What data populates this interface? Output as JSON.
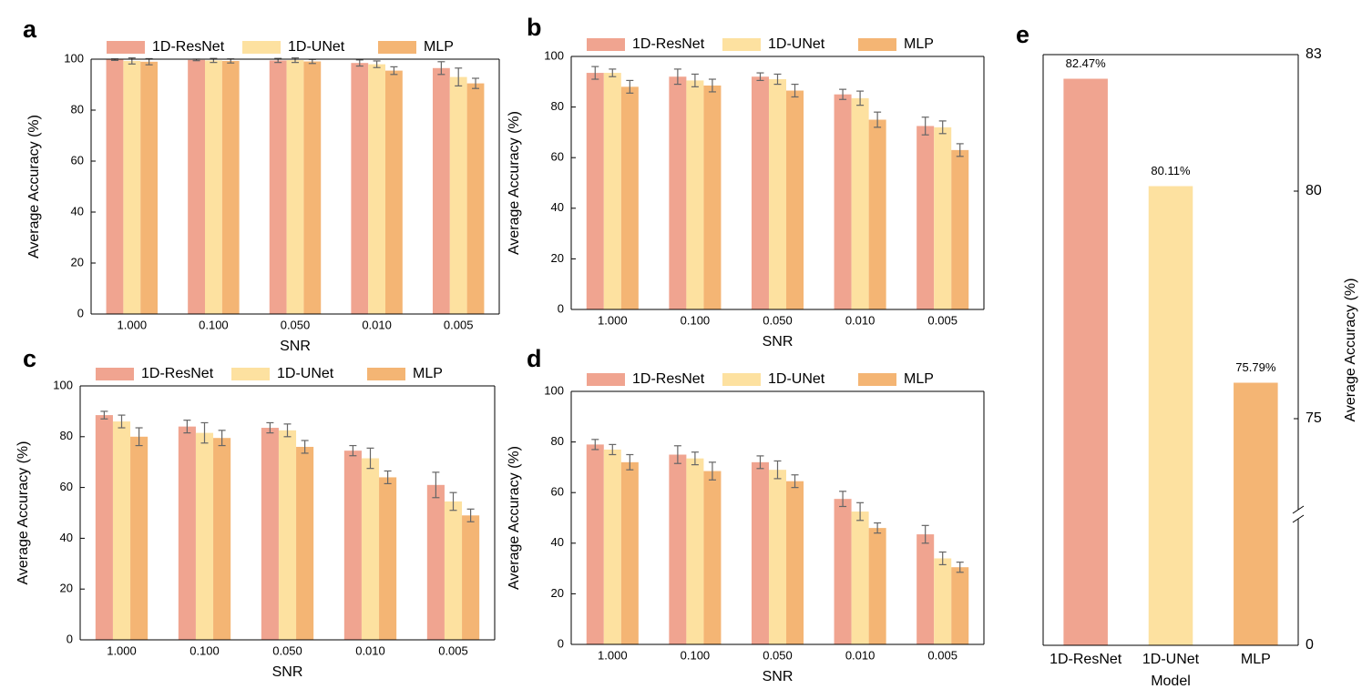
{
  "chart_data": [
    {
      "type": "bar",
      "label": "a",
      "xlabel": "SNR",
      "ylabel": "Average Accuracy (%)",
      "categories": [
        "1.000",
        "0.100",
        "0.050",
        "0.010",
        "0.005"
      ],
      "series": [
        {
          "name": "1D-ResNet",
          "color": "#f0a490",
          "values": [
            99.8,
            99.7,
            99.5,
            98.5,
            96.5
          ],
          "errors": [
            0.3,
            0.3,
            0.8,
            1.2,
            2.5
          ]
        },
        {
          "name": "1D-UNet",
          "color": "#fde1a0",
          "values": [
            99.3,
            99.5,
            99.6,
            98.0,
            93.0
          ],
          "errors": [
            1.2,
            0.8,
            0.9,
            1.3,
            3.5
          ]
        },
        {
          "name": "MLP",
          "color": "#f4b574",
          "values": [
            99.0,
            99.3,
            99.1,
            95.5,
            90.5
          ],
          "errors": [
            1.2,
            0.8,
            0.8,
            1.5,
            2.0
          ]
        }
      ],
      "ylim": [
        0,
        100
      ],
      "yticks": [
        0,
        20,
        40,
        60,
        80,
        100
      ]
    },
    {
      "type": "bar",
      "label": "b",
      "xlabel": "SNR",
      "ylabel": "Average Accuracy (%)",
      "categories": [
        "1.000",
        "0.100",
        "0.050",
        "0.010",
        "0.005"
      ],
      "series": [
        {
          "name": "1D-ResNet",
          "color": "#f0a490",
          "values": [
            93.5,
            92.0,
            92.0,
            85.0,
            72.5
          ],
          "errors": [
            2.5,
            3.0,
            1.5,
            2.0,
            3.5
          ]
        },
        {
          "name": "1D-UNet",
          "color": "#fde1a0",
          "values": [
            93.5,
            90.5,
            91.0,
            83.5,
            72.0
          ],
          "errors": [
            1.5,
            2.5,
            2.0,
            2.8,
            2.5
          ]
        },
        {
          "name": "MLP",
          "color": "#f4b574",
          "values": [
            88.0,
            88.5,
            86.5,
            75.0,
            63.0
          ],
          "errors": [
            2.5,
            2.5,
            2.5,
            3.0,
            2.5
          ]
        }
      ],
      "ylim": [
        0,
        100
      ],
      "yticks": [
        0,
        20,
        40,
        60,
        80,
        100
      ]
    },
    {
      "type": "bar",
      "label": "c",
      "xlabel": "SNR",
      "ylabel": "Average Accuracy (%)",
      "categories": [
        "1.000",
        "0.100",
        "0.050",
        "0.010",
        "0.005"
      ],
      "series": [
        {
          "name": "1D-ResNet",
          "color": "#f0a490",
          "values": [
            88.5,
            84.0,
            83.5,
            74.5,
            61.0
          ],
          "errors": [
            1.5,
            2.5,
            2.0,
            2.0,
            5.0
          ]
        },
        {
          "name": "1D-UNet",
          "color": "#fde1a0",
          "values": [
            86.0,
            81.5,
            82.5,
            71.5,
            54.5
          ],
          "errors": [
            2.5,
            4.0,
            2.5,
            4.0,
            3.5
          ]
        },
        {
          "name": "MLP",
          "color": "#f4b574",
          "values": [
            80.0,
            79.5,
            76.0,
            64.0,
            49.0
          ],
          "errors": [
            3.5,
            3.0,
            2.5,
            2.5,
            2.5
          ]
        }
      ],
      "ylim": [
        0,
        100
      ],
      "yticks": [
        0,
        20,
        40,
        60,
        80,
        100
      ]
    },
    {
      "type": "bar",
      "label": "d",
      "xlabel": "SNR",
      "ylabel": "Average Accuracy (%)",
      "categories": [
        "1.000",
        "0.100",
        "0.050",
        "0.010",
        "0.005"
      ],
      "series": [
        {
          "name": "1D-ResNet",
          "color": "#f0a490",
          "values": [
            79.0,
            75.0,
            72.0,
            57.5,
            43.5
          ],
          "errors": [
            2.0,
            3.5,
            2.5,
            3.0,
            3.5
          ]
        },
        {
          "name": "1D-UNet",
          "color": "#fde1a0",
          "values": [
            77.0,
            73.5,
            69.0,
            52.5,
            34.0
          ],
          "errors": [
            2.0,
            2.5,
            3.5,
            3.5,
            2.5
          ]
        },
        {
          "name": "MLP",
          "color": "#f4b574",
          "values": [
            72.0,
            68.5,
            64.5,
            46.0,
            30.5
          ],
          "errors": [
            3.0,
            3.5,
            2.5,
            2.0,
            2.0
          ]
        }
      ],
      "ylim": [
        0,
        100
      ],
      "yticks": [
        0,
        20,
        40,
        60,
        80,
        100
      ]
    },
    {
      "type": "bar",
      "label": "e",
      "xlabel": "Model",
      "ylabel": "Average Accuracy (%)",
      "categories": [
        "1D-ResNet",
        "1D-UNet",
        "MLP"
      ],
      "values": [
        82.47,
        80.11,
        75.79
      ],
      "value_labels": [
        "82.47%",
        "80.11%",
        "75.79%"
      ],
      "colors": [
        "#f0a490",
        "#fde1a0",
        "#f4b574"
      ],
      "ylim": [
        0,
        83
      ],
      "yticks": [
        0,
        75,
        80,
        83
      ],
      "axis_break": 73,
      "y_axis_side": "right"
    }
  ]
}
